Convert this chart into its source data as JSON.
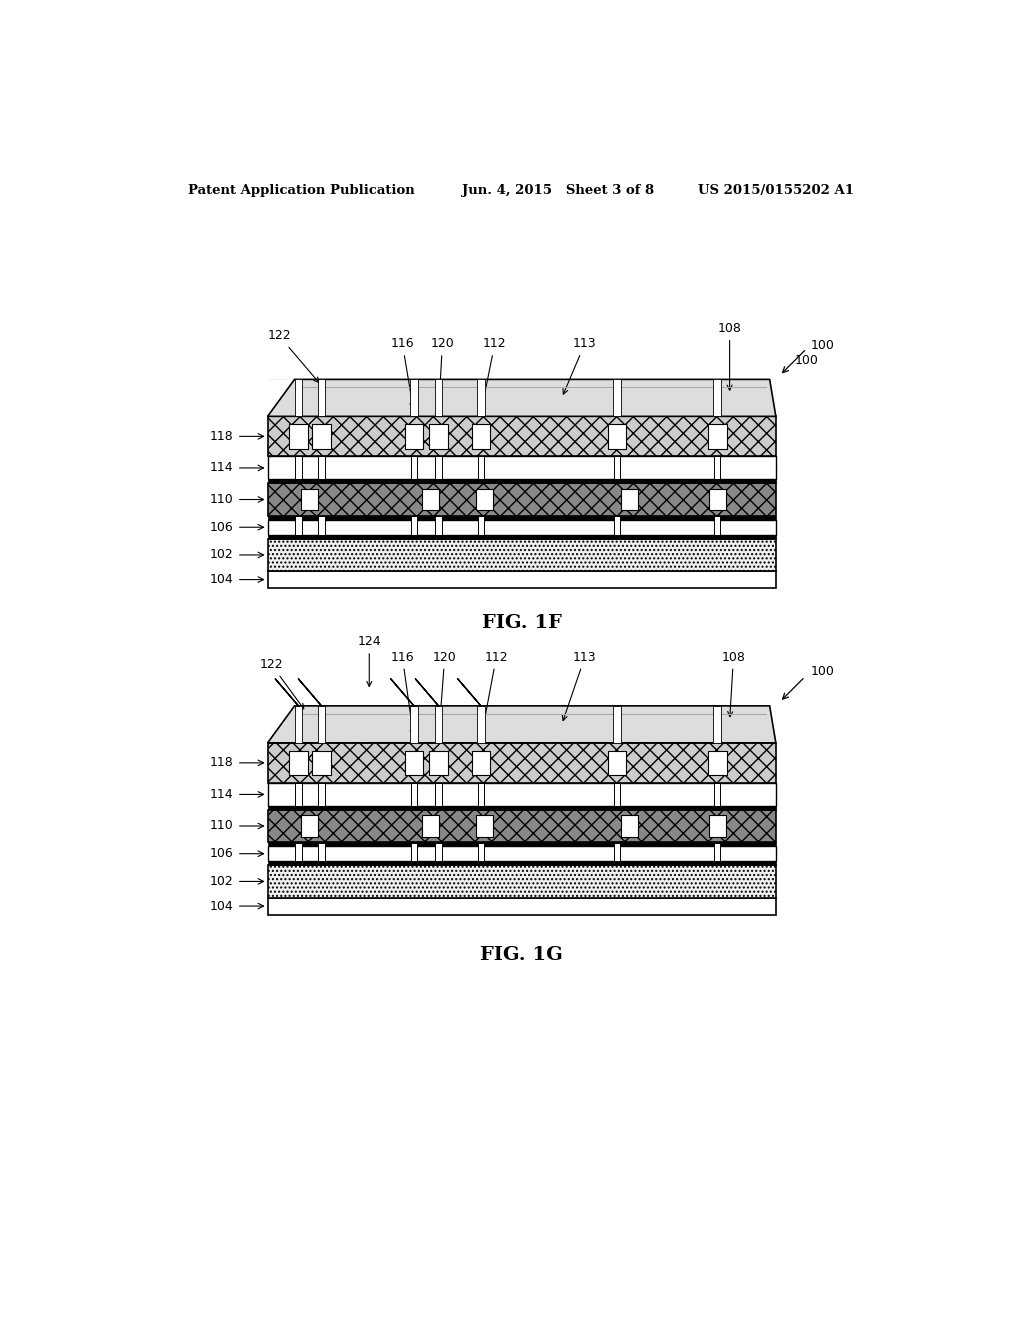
{
  "page_header_left": "Patent Application Publication",
  "page_header_center": "Jun. 4, 2015   Sheet 3 of 8",
  "page_header_right": "US 2015/0155202 A1",
  "fig1f_caption": "FIG. 1F",
  "fig1g_caption": "FIG. 1G",
  "bg_color": "#ffffff",
  "text_color": "#000000"
}
